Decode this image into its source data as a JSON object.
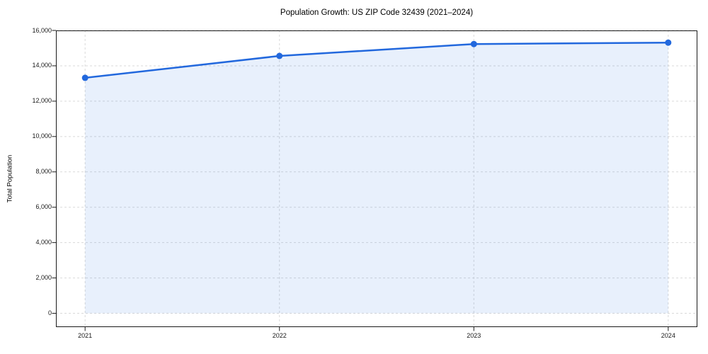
{
  "chart_data": {
    "type": "area",
    "title": "Population Growth: US ZIP Code 32439 (2021–2024)",
    "xlabel": "",
    "ylabel": "Total Population",
    "x": [
      2021,
      2022,
      2023,
      2024
    ],
    "series": [
      {
        "name": "Total Population",
        "values": [
          13320,
          14560,
          15230,
          15310
        ]
      }
    ],
    "xticks": [
      2021,
      2022,
      2023,
      2024
    ],
    "xtick_labels": [
      "2021",
      "2022",
      "2023",
      "2024"
    ],
    "yticks": [
      0,
      2000,
      4000,
      6000,
      8000,
      10000,
      12000,
      14000,
      16000
    ],
    "ytick_labels": [
      "0",
      "2,000",
      "4,000",
      "6,000",
      "8,000",
      "10,000",
      "12,000",
      "14,000",
      "16,000"
    ],
    "xlim": [
      2020.85,
      2024.15
    ],
    "ylim": [
      -780,
      16000
    ],
    "grid": true,
    "grid_style": "dashed",
    "legend": false,
    "colors": {
      "line": "#2268dd",
      "marker": "#2268dd",
      "fill": "#2268dd",
      "fill_opacity": 0.1,
      "grid": "#d9d9d9",
      "spine": "#1a1a1a",
      "background": "#ffffff"
    }
  }
}
